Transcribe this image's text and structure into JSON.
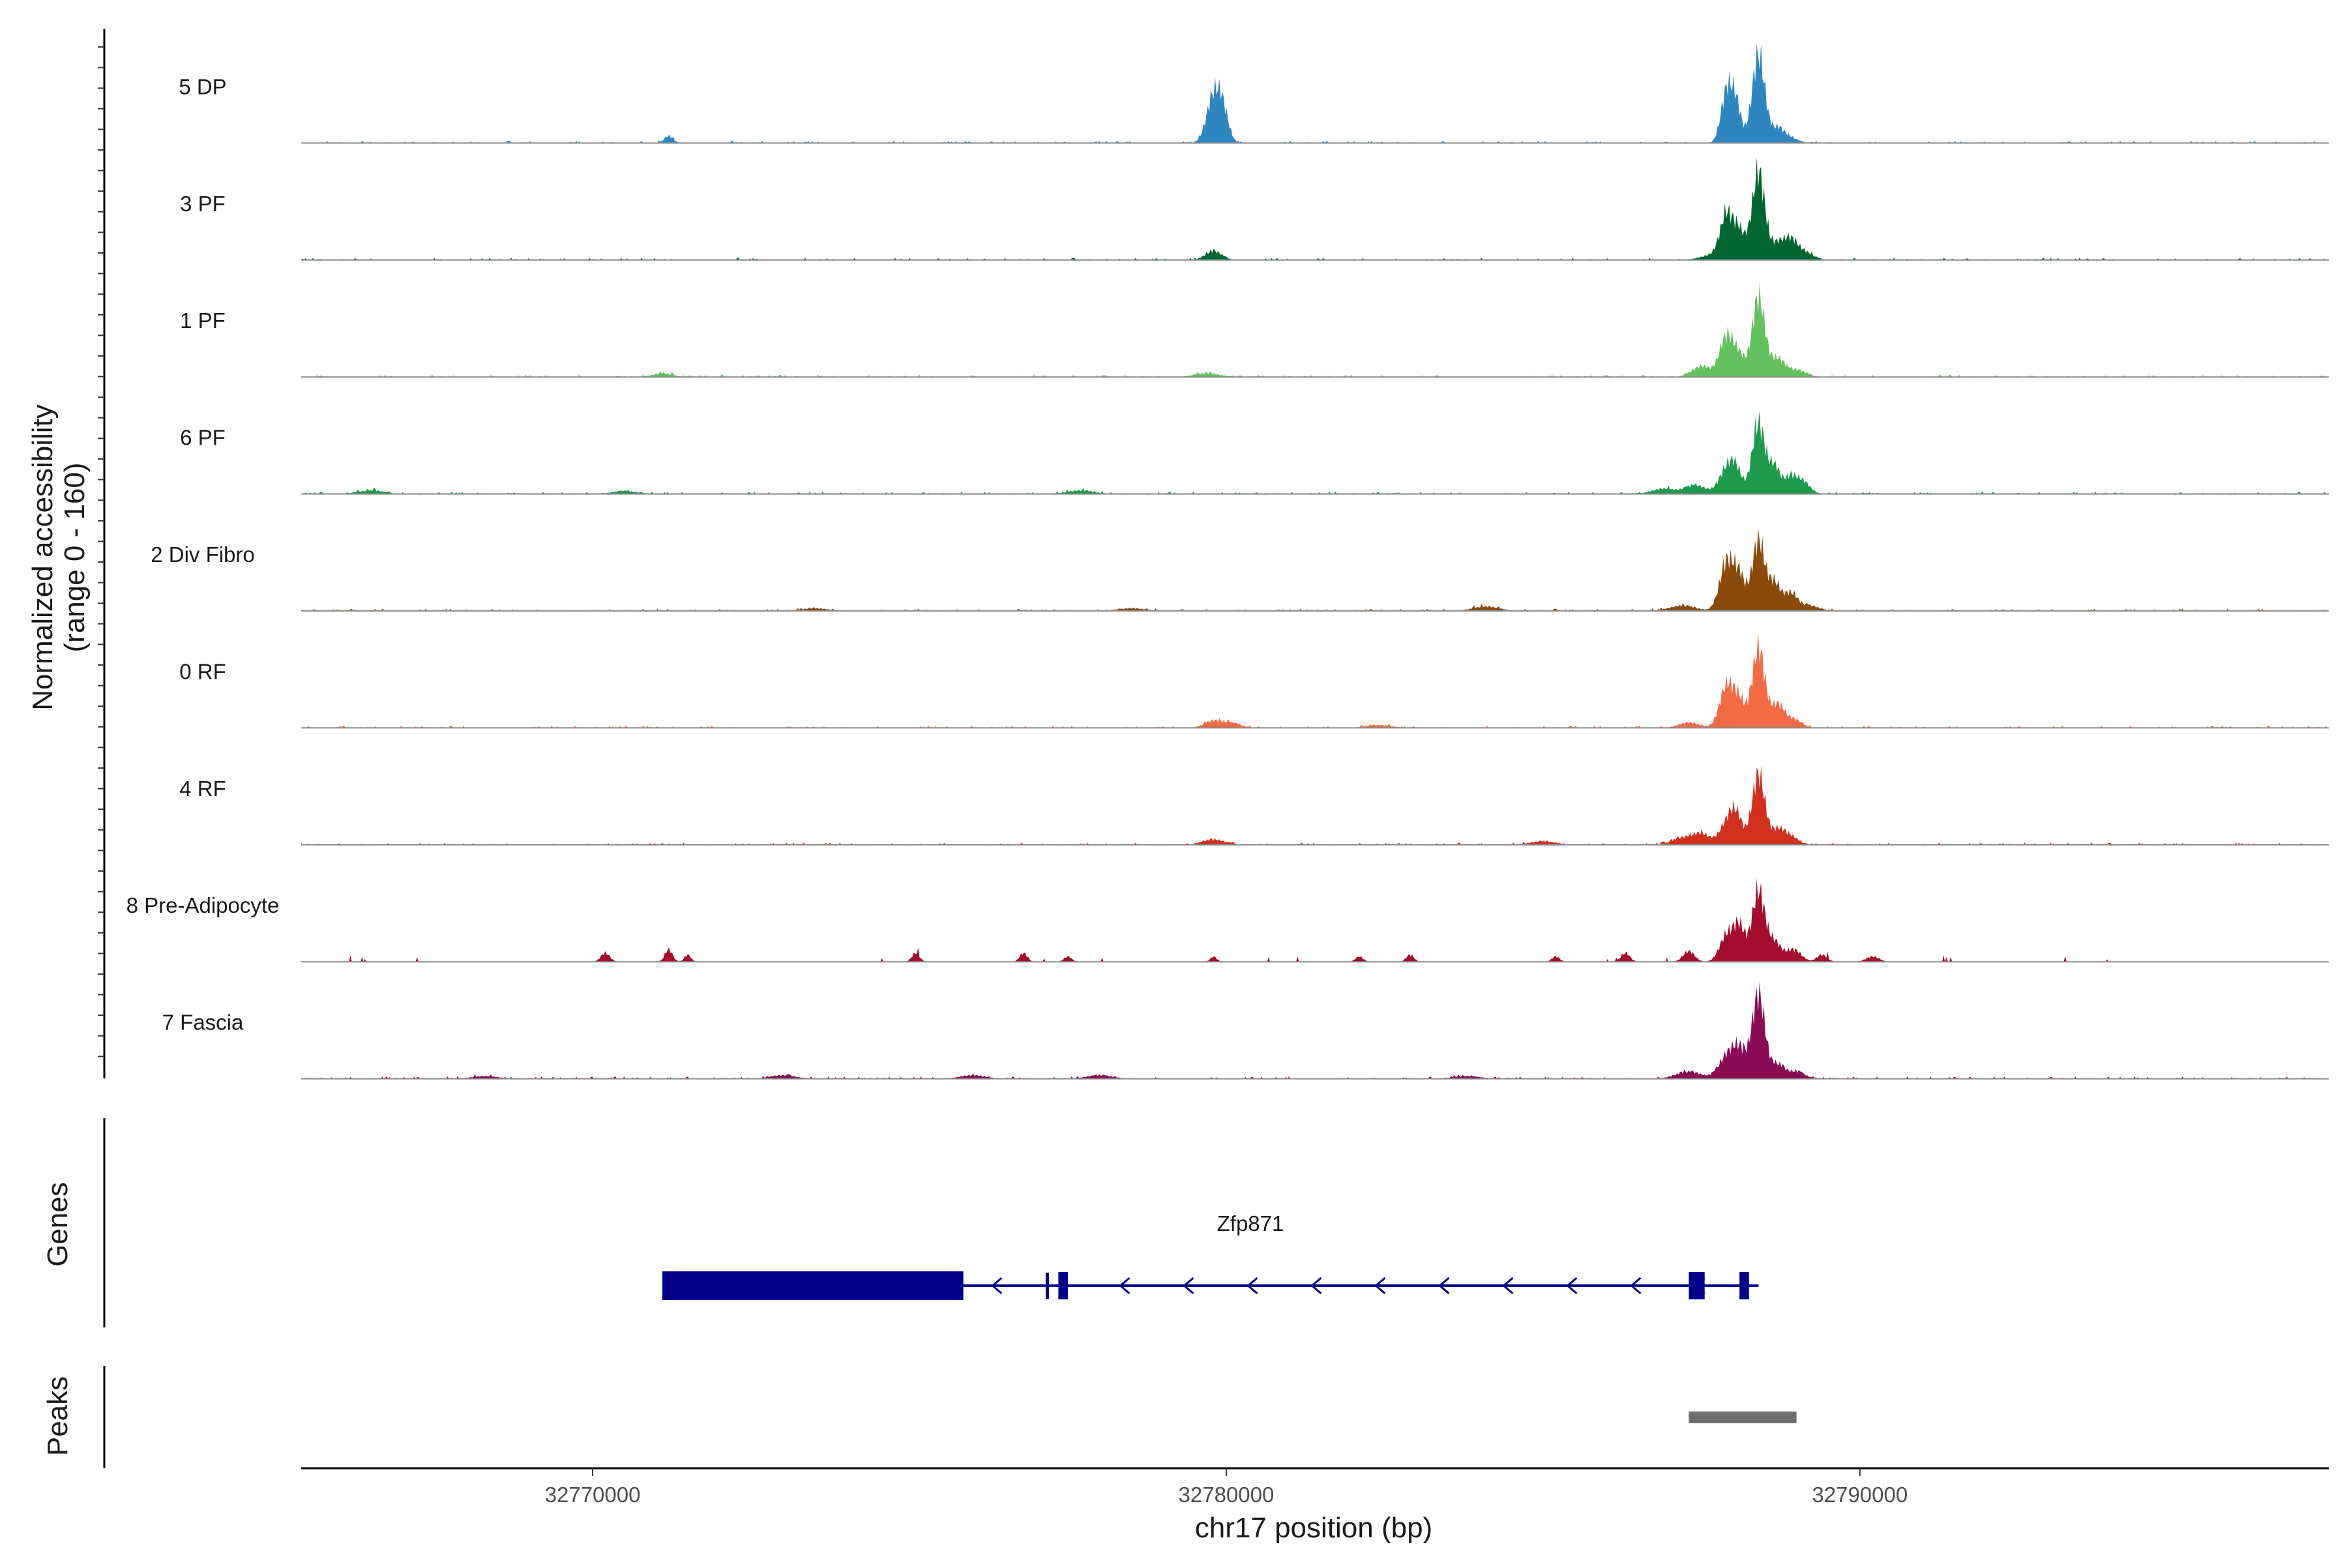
{
  "chart_data": {
    "type": "area",
    "title": "",
    "xlabel": "chr17 position (bp)",
    "ylabel": "Normalized accessibility",
    "ylabel_sub": "(range 0 - 160)",
    "ylim": [
      0,
      160
    ],
    "xlim": [
      32765400,
      32797400
    ],
    "x_ticks": [
      32770000,
      32780000,
      32790000
    ],
    "x_tick_labels": [
      "32770000",
      "32780000",
      "32790000"
    ],
    "series": [
      {
        "name": "5 DP",
        "color": "#2E86C1",
        "peaks": [
          [
            32771200,
            8,
            70
          ],
          [
            32779800,
            52,
            110
          ],
          [
            32779950,
            30,
            90
          ],
          [
            32787900,
            58,
            90
          ],
          [
            32788050,
            40,
            80
          ],
          [
            32788400,
            100,
            100
          ],
          [
            32788700,
            16,
            100
          ],
          [
            32788900,
            6,
            120
          ]
        ]
      },
      {
        "name": "3 PF",
        "color": "#00662E",
        "peaks": [
          [
            32779800,
            10,
            130
          ],
          [
            32787700,
            6,
            200
          ],
          [
            32787900,
            48,
            100
          ],
          [
            32788100,
            30,
            90
          ],
          [
            32788400,
            100,
            100
          ],
          [
            32788700,
            18,
            100
          ],
          [
            32788900,
            20,
            100
          ],
          [
            32789100,
            10,
            140
          ]
        ]
      },
      {
        "name": "1 PF",
        "color": "#64C15F",
        "peaks": [
          [
            32771100,
            4,
            150
          ],
          [
            32779700,
            4,
            200
          ],
          [
            32787500,
            12,
            150
          ],
          [
            32787900,
            46,
            110
          ],
          [
            32788100,
            20,
            90
          ],
          [
            32788400,
            90,
            100
          ],
          [
            32788700,
            20,
            110
          ],
          [
            32789000,
            8,
            150
          ]
        ]
      },
      {
        "name": "6 PF",
        "color": "#1E9A4B",
        "peaks": [
          [
            32766500,
            4,
            200
          ],
          [
            32770500,
            3,
            200
          ],
          [
            32777700,
            4,
            200
          ],
          [
            32786900,
            6,
            180
          ],
          [
            32787400,
            10,
            160
          ],
          [
            32787900,
            28,
            120
          ],
          [
            32788050,
            22,
            90
          ],
          [
            32788400,
            80,
            100
          ],
          [
            32788650,
            30,
            90
          ],
          [
            32788900,
            18,
            100
          ],
          [
            32789100,
            14,
            110
          ]
        ]
      },
      {
        "name": "2 Div Fibro",
        "color": "#8A4A0A",
        "peaks": [
          [
            32773500,
            3,
            200
          ],
          [
            32778500,
            3,
            200
          ],
          [
            32784100,
            5,
            200
          ],
          [
            32787200,
            6,
            200
          ],
          [
            32787900,
            55,
            110
          ],
          [
            32788100,
            36,
            90
          ],
          [
            32788400,
            80,
            100
          ],
          [
            32788650,
            30,
            90
          ],
          [
            32788900,
            20,
            110
          ],
          [
            32789200,
            6,
            150
          ]
        ]
      },
      {
        "name": "0 RF",
        "color": "#F26B45",
        "peaks": [
          [
            32779800,
            8,
            140
          ],
          [
            32780100,
            5,
            140
          ],
          [
            32782400,
            3,
            200
          ],
          [
            32787300,
            6,
            160
          ],
          [
            32787900,
            48,
            110
          ],
          [
            32788100,
            28,
            90
          ],
          [
            32788400,
            90,
            100
          ],
          [
            32788700,
            26,
            100
          ],
          [
            32788950,
            10,
            120
          ]
        ]
      },
      {
        "name": "4 RF",
        "color": "#D32F1E",
        "peaks": [
          [
            32779800,
            6,
            180
          ],
          [
            32785000,
            4,
            200
          ],
          [
            32787200,
            8,
            160
          ],
          [
            32787500,
            12,
            130
          ],
          [
            32787900,
            22,
            120
          ],
          [
            32788050,
            30,
            100
          ],
          [
            32788400,
            80,
            100
          ],
          [
            32788700,
            16,
            100
          ],
          [
            32788900,
            10,
            120
          ]
        ]
      },
      {
        "name": "8 Pre-Adipocyte",
        "color": "#A50C2C",
        "peaks": [
          [
            32770200,
            10,
            70
          ],
          [
            32771200,
            14,
            60
          ],
          [
            32771500,
            8,
            50
          ],
          [
            32775100,
            10,
            60
          ],
          [
            32776800,
            10,
            60
          ],
          [
            32777500,
            6,
            60
          ],
          [
            32779800,
            6,
            50
          ],
          [
            32782100,
            6,
            60
          ],
          [
            32782900,
            8,
            60
          ],
          [
            32785200,
            6,
            60
          ],
          [
            32786300,
            10,
            70
          ],
          [
            32787300,
            12,
            90
          ],
          [
            32787900,
            30,
            110
          ],
          [
            32788100,
            38,
            90
          ],
          [
            32788400,
            80,
            100
          ],
          [
            32788650,
            22,
            100
          ],
          [
            32788950,
            14,
            120
          ],
          [
            32789400,
            8,
            80
          ],
          [
            32790200,
            6,
            100
          ]
        ]
      },
      {
        "name": "7 Fascia",
        "color": "#8B0A55",
        "peaks": [
          [
            32768300,
            3,
            200
          ],
          [
            32773000,
            4,
            200
          ],
          [
            32776000,
            4,
            200
          ],
          [
            32778000,
            4,
            200
          ],
          [
            32783800,
            3,
            200
          ],
          [
            32787300,
            8,
            200
          ],
          [
            32787900,
            24,
            130
          ],
          [
            32788100,
            30,
            110
          ],
          [
            32788400,
            95,
            100
          ],
          [
            32788700,
            16,
            110
          ],
          [
            32789000,
            8,
            130
          ]
        ]
      }
    ],
    "genes_track_label": "Genes",
    "gene": {
      "name": "Zfp871",
      "strand": "-",
      "start": 32771100,
      "end": 32788400,
      "color": "#00008B",
      "exons": [
        [
          32771100,
          32775850,
          "thick"
        ],
        [
          32777150,
          32777200,
          "thin"
        ],
        [
          32777350,
          32777500,
          "medium"
        ],
        [
          32787300,
          32787550,
          "medium"
        ],
        [
          32788100,
          32788250,
          "medium"
        ]
      ]
    },
    "peaks_track_label": "Peaks",
    "peak_regions": [
      [
        32787300,
        32789000
      ]
    ],
    "peak_color": "#6E6E6E"
  }
}
